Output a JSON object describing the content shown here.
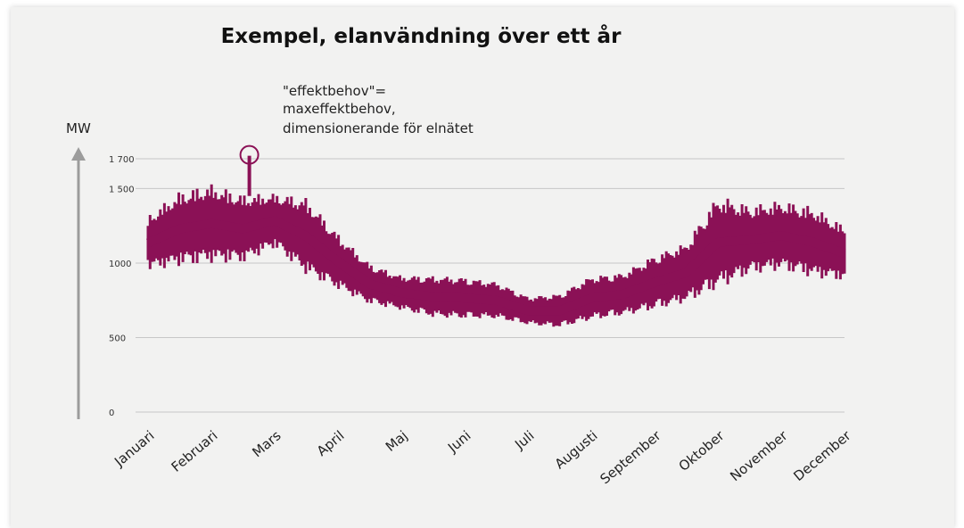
{
  "chart_data": {
    "type": "line",
    "title": "Exempel, elanvändning över ett år",
    "ylabel": "MW",
    "ylim": [
      0,
      1700
    ],
    "yticks": [
      {
        "value": 0,
        "label": "0"
      },
      {
        "value": 500,
        "label": "500"
      },
      {
        "value": 1000,
        "label": "1000"
      },
      {
        "value": 1500,
        "label": "1 500"
      },
      {
        "value": 1700,
        "label": "1 700"
      }
    ],
    "categories": [
      "Januari",
      "Februari",
      "Mars",
      "April",
      "Maj",
      "Juni",
      "Juli",
      "Augusti",
      "September",
      "Oktober",
      "November",
      "December"
    ],
    "band": {
      "x": [
        0,
        0.5,
        1.0,
        1.5,
        2.0,
        2.5,
        3.0,
        3.5,
        4.0,
        4.5,
        5.0,
        5.5,
        6.0,
        6.5,
        7.0,
        7.5,
        8.0,
        8.5,
        9.0,
        9.5,
        10.0,
        10.5,
        11.0
      ],
      "high": [
        1320,
        1480,
        1530,
        1460,
        1470,
        1440,
        1200,
        1000,
        920,
        920,
        910,
        880,
        780,
        800,
        920,
        940,
        1060,
        1140,
        1460,
        1390,
        1420,
        1380,
        1250
      ],
      "low": [
        950,
        980,
        1000,
        1000,
        1100,
        920,
        820,
        720,
        680,
        630,
        620,
        620,
        580,
        560,
        610,
        640,
        680,
        730,
        820,
        920,
        950,
        900,
        880
      ]
    },
    "peak": {
      "x": 1.6,
      "value": 1720
    },
    "annotation": [
      "\"effektbehov\"=",
      "maxeffektbehov,",
      "dimensionerande för elnätet"
    ],
    "colors": {
      "series": "#8b1156",
      "marker": "#8b1156",
      "axis_arrow": "#9c9c9c",
      "grid": "#c7c7c7"
    },
    "grid": true,
    "legend": "none"
  }
}
